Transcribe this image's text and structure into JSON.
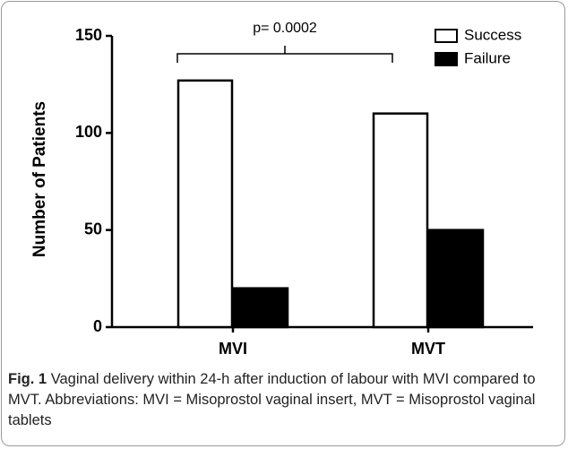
{
  "chart_data": {
    "type": "bar",
    "annotation": "p= 0.0002",
    "y_label": "Number of Patients",
    "categories": [
      "MVI",
      "MVT"
    ],
    "series": [
      {
        "name": "Success",
        "color": "#ffffff",
        "values": [
          127,
          110
        ]
      },
      {
        "name": "Failure",
        "color": "#000000",
        "values": [
          20,
          50
        ]
      }
    ],
    "ylim": [
      0,
      150
    ],
    "yticks": [
      0,
      50,
      100,
      150
    ],
    "legend": "top-right",
    "caption_label": "Fig. 1",
    "caption": "Vaginal delivery within 24-h after induction of labour with MVI compared to MVT. Abbreviations: MVI = Misoprostol vaginal insert, MVT = Misoprostol vaginal tablets"
  }
}
